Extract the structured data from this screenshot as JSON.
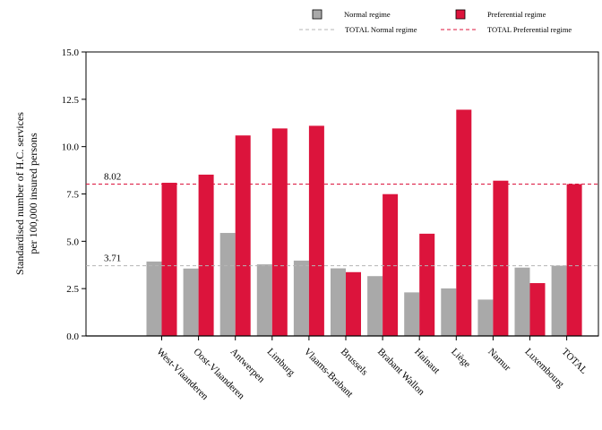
{
  "chart_data": {
    "type": "bar",
    "categories": [
      "West-Vlaanderen",
      "Oost-Vlaanderen",
      "Antwerpen",
      "Limburg",
      "Vlaams-Brabant",
      "Brussels",
      "Brabant Wallon",
      "Hainaut",
      "Liège",
      "Namur",
      "Luxembourg",
      "TOTAL"
    ],
    "series": [
      {
        "name": "Normal regime",
        "color": "#a9a9a9",
        "values": [
          3.93,
          3.56,
          5.44,
          3.78,
          3.98,
          3.57,
          3.16,
          2.3,
          2.51,
          1.92,
          3.61,
          3.71
        ]
      },
      {
        "name": "Preferential regime",
        "color": "#dc143c",
        "values": [
          8.09,
          8.52,
          10.59,
          10.96,
          11.1,
          3.37,
          7.49,
          5.4,
          11.95,
          8.2,
          2.79,
          8.02
        ]
      }
    ],
    "reference_lines": [
      {
        "name": "TOTAL Normal regime",
        "value": 3.71,
        "label": "3.71",
        "color": "#b5b5b5"
      },
      {
        "name": "TOTAL Preferential regime",
        "value": 8.02,
        "label": "8.02",
        "color": "#dc143c"
      }
    ],
    "ylabel_line1": "Standardised number of H.C. services",
    "ylabel_line2": "per 100,000 insured persons",
    "ylim": [
      0,
      15
    ],
    "yticks": [
      "0.0",
      "2.5",
      "5.0",
      "7.5",
      "10.0",
      "12.5",
      "15.0"
    ],
    "legend_position": "top",
    "grid": false
  }
}
